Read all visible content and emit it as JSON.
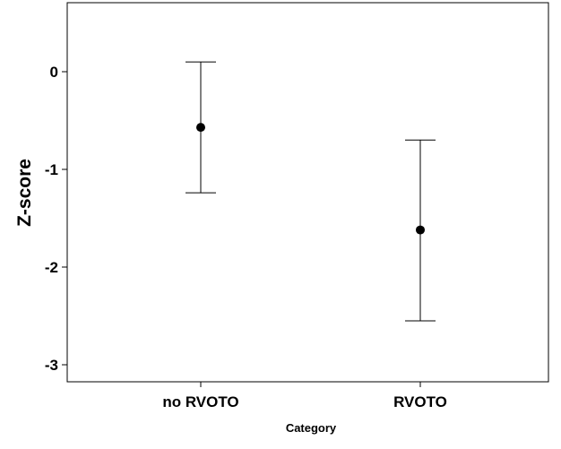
{
  "chart_data": {
    "type": "scatter",
    "title": "",
    "xlabel": "Category",
    "ylabel": "Z-score",
    "categories": [
      "no RVOTO",
      "RVOTO"
    ],
    "points": [
      {
        "category": "no RVOTO",
        "mean": -0.57,
        "lower": -1.24,
        "upper": 0.1
      },
      {
        "category": "RVOTO",
        "mean": -1.62,
        "lower": -2.55,
        "upper": -0.7
      }
    ],
    "yticks": [
      0,
      -1,
      -2,
      -3
    ],
    "ytick_labels": [
      "0",
      "-1",
      "-2",
      "-3"
    ],
    "ylim": [
      -3.2,
      0.7
    ],
    "grid": false,
    "legend": "none"
  }
}
